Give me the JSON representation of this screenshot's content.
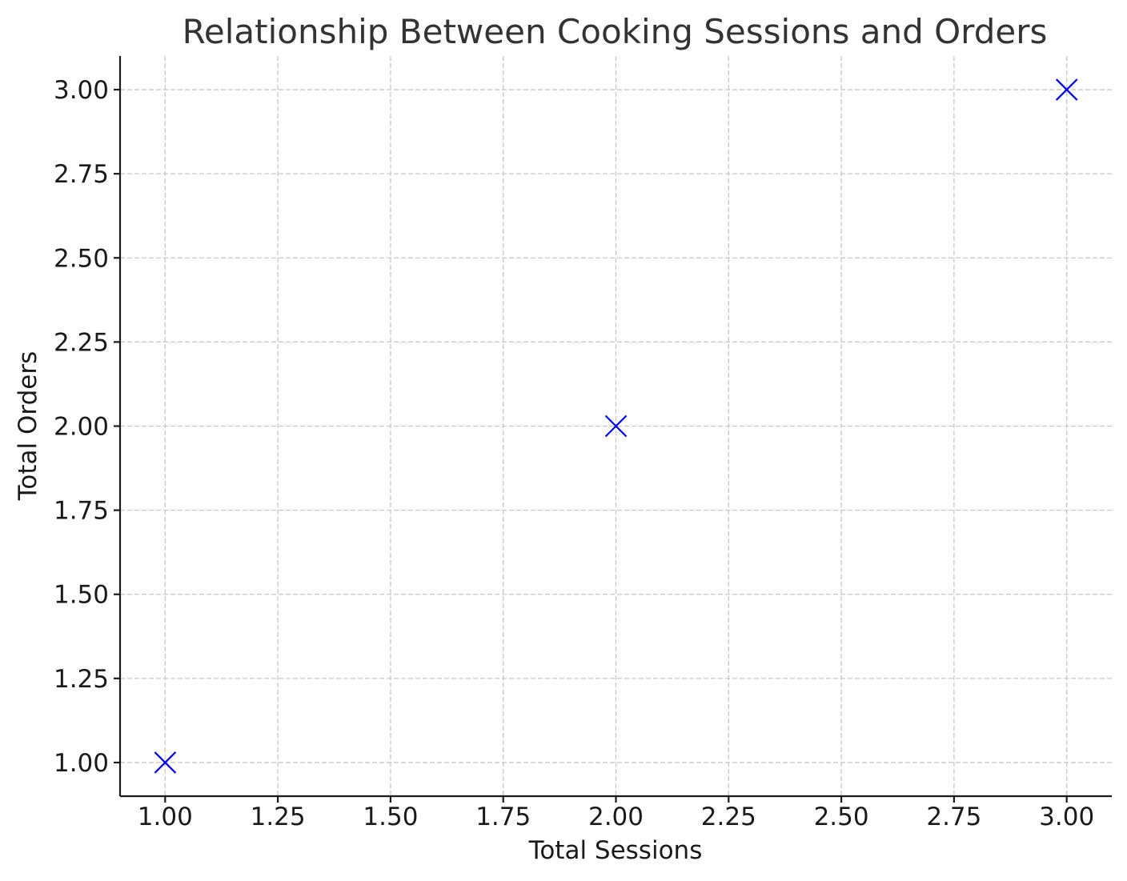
{
  "chart_data": {
    "type": "scatter",
    "title": "Relationship Between Cooking Sessions and Orders",
    "xlabel": "Total Sessions",
    "ylabel": "Total Orders",
    "x": [
      1,
      2,
      3
    ],
    "y": [
      1,
      2,
      3
    ],
    "xlim": [
      0.9,
      3.1
    ],
    "ylim": [
      0.9,
      3.1
    ],
    "xticks": [
      "1.00",
      "1.25",
      "1.50",
      "1.75",
      "2.00",
      "2.25",
      "2.50",
      "2.75",
      "3.00"
    ],
    "yticks": [
      "1.00",
      "1.25",
      "1.50",
      "1.75",
      "2.00",
      "2.25",
      "2.50",
      "2.75",
      "3.00"
    ],
    "grid": true,
    "marker": "x",
    "marker_color": "#0000ff"
  }
}
